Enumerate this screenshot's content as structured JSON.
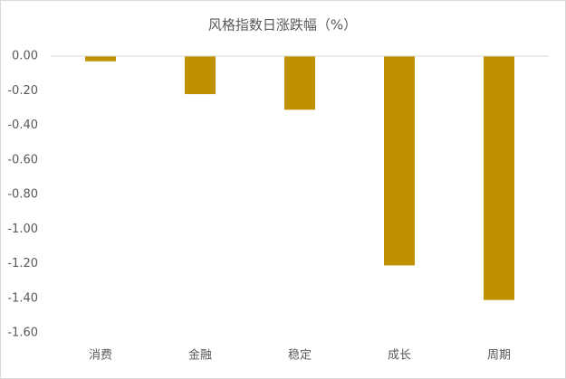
{
  "chart_data": {
    "type": "bar",
    "title": "风格指数日涨跌幅（%）",
    "categories": [
      "消费",
      "金融",
      "稳定",
      "成长",
      "周期"
    ],
    "values": [
      -0.03,
      -0.22,
      -0.31,
      -1.21,
      -1.41
    ],
    "color": "#bf9000",
    "ylim": [
      -1.6,
      0
    ],
    "yticks": [
      {
        "value": 0,
        "label": "0.00"
      },
      {
        "value": -0.2,
        "label": "-0.20"
      },
      {
        "value": -0.4,
        "label": "-0.40"
      },
      {
        "value": -0.6,
        "label": "-0.60"
      },
      {
        "value": -0.8,
        "label": "-0.80"
      },
      {
        "value": -1.0,
        "label": "-1.00"
      },
      {
        "value": -1.2,
        "label": "-1.20"
      },
      {
        "value": -1.4,
        "label": "-1.40"
      },
      {
        "value": -1.6,
        "label": "-1.60"
      }
    ],
    "grid": false
  }
}
